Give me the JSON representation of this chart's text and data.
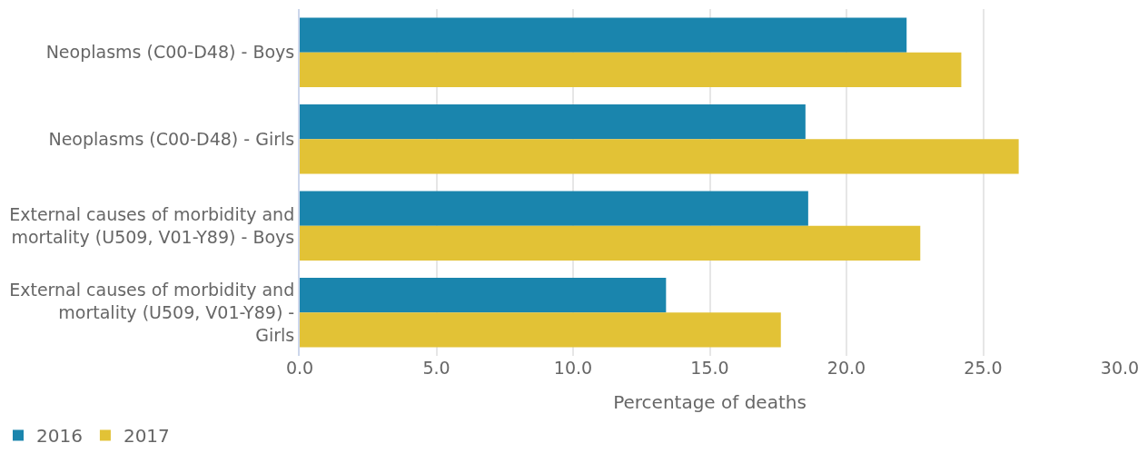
{
  "chart_data": {
    "type": "bar",
    "orientation": "horizontal",
    "xlabel": "Percentage of deaths",
    "categories": [
      "Neoplasms (C00-D48) - Boys",
      "Neoplasms (C00-D48) - Girls",
      "External causes of morbidity and mortality (U509, V01-Y89) - Boys",
      "External causes of morbidity and mortality (U509, V01-Y89) - Girls"
    ],
    "series": [
      {
        "name": "2016",
        "color": "#1a85ad",
        "values": [
          22.2,
          18.5,
          18.6,
          13.4
        ]
      },
      {
        "name": "2017",
        "color": "#e2c236",
        "values": [
          24.2,
          26.3,
          22.7,
          17.6
        ]
      }
    ],
    "xlim": [
      0,
      30
    ],
    "xticks": [
      {
        "value": 0,
        "label": "0.0"
      },
      {
        "value": 5,
        "label": "5.0"
      },
      {
        "value": 10,
        "label": "10.0"
      },
      {
        "value": 15,
        "label": "15.0"
      },
      {
        "value": 20,
        "label": "20.0"
      },
      {
        "value": 25,
        "label": "25.0"
      },
      {
        "value": 30,
        "label": "30.0"
      }
    ],
    "grid": "x",
    "legend": "bottom left"
  }
}
